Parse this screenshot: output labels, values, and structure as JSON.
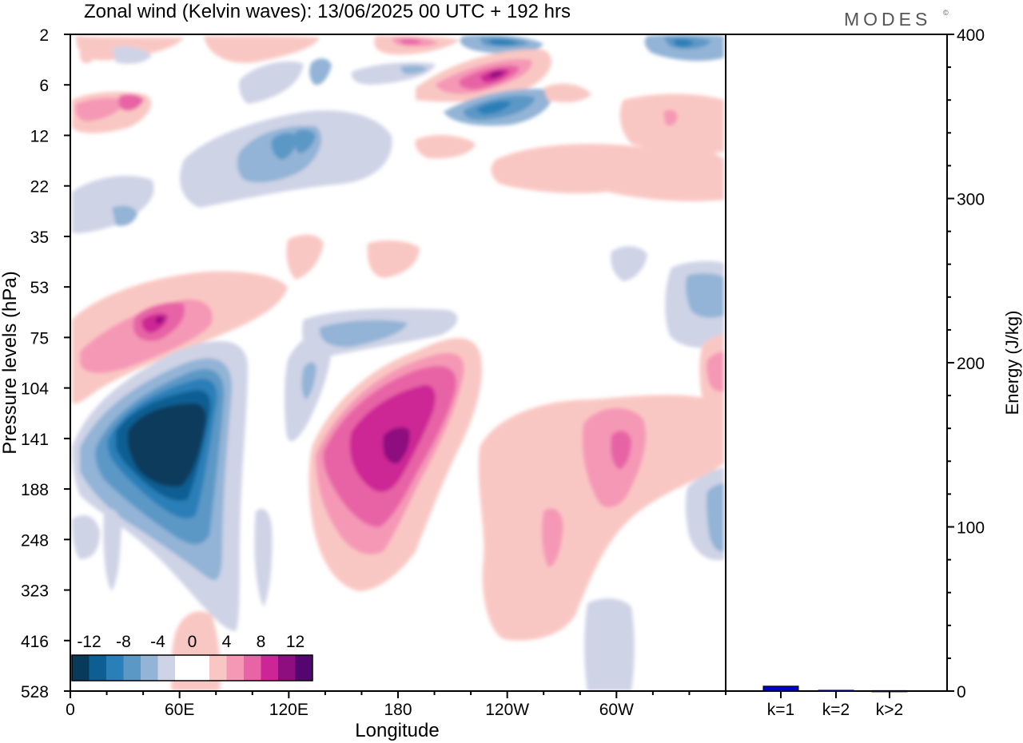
{
  "title": "Zonal wind (Kelvin waves):  13/06/2025  00 UTC  + 192 hrs",
  "brand": "MODES",
  "brand_mark": "©",
  "main_panel": {
    "xlabel": "Longitude",
    "ylabel": "Pressure levels (hPa)",
    "xticks": [
      "0",
      "60E",
      "120E",
      "180",
      "120W",
      "60W"
    ],
    "yticks": [
      "2",
      "6",
      "12",
      "22",
      "35",
      "53",
      "75",
      "104",
      "141",
      "188",
      "248",
      "323",
      "416",
      "528"
    ]
  },
  "colorbar": {
    "labels": [
      "-12",
      "-8",
      "-4",
      "0",
      "4",
      "8",
      "12"
    ],
    "colors": [
      "#083a5c",
      "#0d5f93",
      "#2b7fb8",
      "#5c98c6",
      "#93b4d6",
      "#cfd3e6",
      "#ffffff",
      "#ffffff",
      "#f9c7c3",
      "#f598b6",
      "#e764a5",
      "#cd2595",
      "#8e0d7f",
      "#55056f"
    ]
  },
  "chart_data": [
    {
      "type": "heatmap",
      "title": "Zonal wind (Kelvin waves):  13/06/2025  00 UTC  + 192 hrs",
      "xlabel": "Longitude",
      "ylabel": "Pressure levels (hPa)",
      "x_range": [
        0,
        360
      ],
      "y_levels_hPa": [
        2,
        6,
        12,
        22,
        35,
        53,
        75,
        104,
        141,
        188,
        248,
        323,
        416,
        528
      ],
      "color_levels": [
        -12,
        -10,
        -8,
        -6,
        -4,
        -2,
        0,
        2,
        4,
        6,
        8,
        10,
        12
      ],
      "features": [
        {
          "lon": 52,
          "p": 150,
          "value": -14
        },
        {
          "lon": 20,
          "p": 141,
          "value": -6
        },
        {
          "lon": 128,
          "p": 130,
          "value": -4
        },
        {
          "lon": 180,
          "p": 141,
          "value": 12
        },
        {
          "lon": 175,
          "p": 170,
          "value": 8
        },
        {
          "lon": 300,
          "p": 141,
          "value": 7
        },
        {
          "lon": 270,
          "p": 250,
          "value": 4
        },
        {
          "lon": 40,
          "p": 75,
          "value": 6
        },
        {
          "lon": 240,
          "p": 6,
          "value": 9
        },
        {
          "lon": 232,
          "p": 10,
          "value": -6
        },
        {
          "lon": 125,
          "p": 14,
          "value": -5
        },
        {
          "lon": 240,
          "p": 2,
          "value": -7
        },
        {
          "lon": 335,
          "p": 2,
          "value": -6
        },
        {
          "lon": 345,
          "p": 60,
          "value": -5
        },
        {
          "lon": 355,
          "p": 210,
          "value": -4
        },
        {
          "lon": 35,
          "p": 8,
          "value": 5
        },
        {
          "lon": 310,
          "p": 20,
          "value": 2
        }
      ]
    },
    {
      "type": "bar",
      "categories": [
        "k=1",
        "k=2",
        "k>2"
      ],
      "values": [
        3,
        0.5,
        0.3
      ],
      "ylabel": "Energy (J/kg)",
      "ylim": [
        0,
        400
      ],
      "yticks": [
        "0",
        "100",
        "200",
        "300",
        "400"
      ],
      "bar_color": "#0000cc"
    }
  ]
}
